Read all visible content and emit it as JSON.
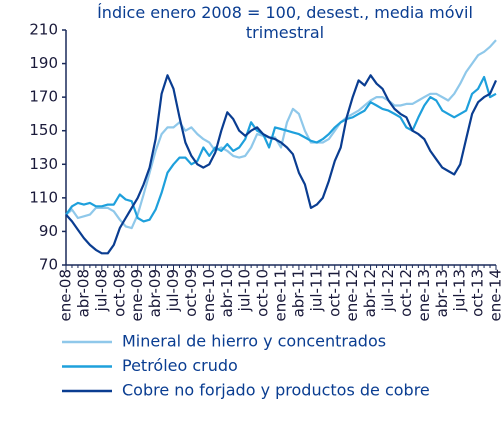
{
  "chart_data": {
    "type": "line",
    "title": "Índice enero 2008 = 100, desest., media móvil trimestral",
    "categories": [
      "ene-08",
      null,
      null,
      "abr-08",
      null,
      null,
      "jul-08",
      null,
      null,
      "oct-08",
      null,
      null,
      "ene-09",
      null,
      null,
      "abr-09",
      null,
      null,
      "jul-09",
      null,
      null,
      "oct-09",
      null,
      null,
      "ene-10",
      null,
      null,
      "abr-10",
      null,
      null,
      "jul-10",
      null,
      null,
      "oct-10",
      null,
      null,
      "ene-11",
      null,
      null,
      "abr-11",
      null,
      null,
      "jul-11",
      null,
      null,
      "oct-11",
      null,
      null,
      "ene-12",
      null,
      null,
      "abr-12",
      null,
      null,
      "jul-12",
      null,
      null,
      "oct-12",
      null,
      null,
      "ene-13",
      null,
      null,
      "abr-13",
      null,
      null,
      "jul-13",
      null,
      null,
      "oct-13",
      null,
      null,
      "ene-14"
    ],
    "series": [
      {
        "name": "Mineral de hierro y concentrados",
        "color": "#8fc8ea",
        "values": [
          100,
          103,
          98,
          99,
          100,
          104,
          104,
          104,
          102,
          97,
          93,
          92,
          100,
          112,
          125,
          138,
          148,
          152,
          152,
          155,
          150,
          152,
          148,
          145,
          143,
          138,
          140,
          138,
          135,
          134,
          135,
          140,
          148,
          147,
          146,
          146,
          140,
          155,
          163,
          160,
          150,
          143,
          143,
          143,
          145,
          150,
          155,
          158,
          160,
          162,
          165,
          168,
          170,
          170,
          168,
          165,
          165,
          166,
          166,
          168,
          170,
          172,
          172,
          170,
          168,
          172,
          178,
          185,
          190,
          195,
          197,
          200,
          204
        ]
      },
      {
        "name": "Petróleo crudo",
        "color": "#1ea0dc",
        "values": [
          100,
          105,
          107,
          106,
          107,
          105,
          105,
          106,
          106,
          112,
          109,
          108,
          98,
          96,
          97,
          103,
          113,
          125,
          130,
          134,
          134,
          130,
          132,
          140,
          135,
          140,
          138,
          142,
          138,
          140,
          145,
          155,
          150,
          148,
          140,
          152,
          151,
          150,
          149,
          148,
          146,
          144,
          143,
          145,
          148,
          152,
          155,
          157,
          158,
          160,
          162,
          167,
          165,
          163,
          162,
          160,
          158,
          152,
          150,
          158,
          165,
          170,
          168,
          162,
          160,
          158,
          160,
          162,
          172,
          175,
          182,
          170,
          172
        ]
      },
      {
        "name": "Cobre no forjado y productos de cobre",
        "color": "#0a3d91",
        "values": [
          100,
          96,
          91,
          86,
          82,
          79,
          77,
          77,
          82,
          92,
          98,
          104,
          110,
          118,
          128,
          145,
          172,
          183,
          175,
          158,
          143,
          135,
          130,
          128,
          130,
          137,
          150,
          161,
          157,
          150,
          147,
          150,
          152,
          148,
          146,
          145,
          143,
          140,
          136,
          125,
          118,
          104,
          106,
          110,
          120,
          132,
          140,
          158,
          170,
          180,
          177,
          183,
          178,
          175,
          168,
          163,
          160,
          158,
          150,
          148,
          145,
          138,
          133,
          128,
          126,
          124,
          130,
          145,
          160,
          167,
          170,
          172,
          180
        ]
      }
    ],
    "ylim": [
      70,
      210
    ],
    "yticks": [
      70,
      90,
      110,
      130,
      150,
      170,
      190,
      210
    ],
    "grid": false
  }
}
